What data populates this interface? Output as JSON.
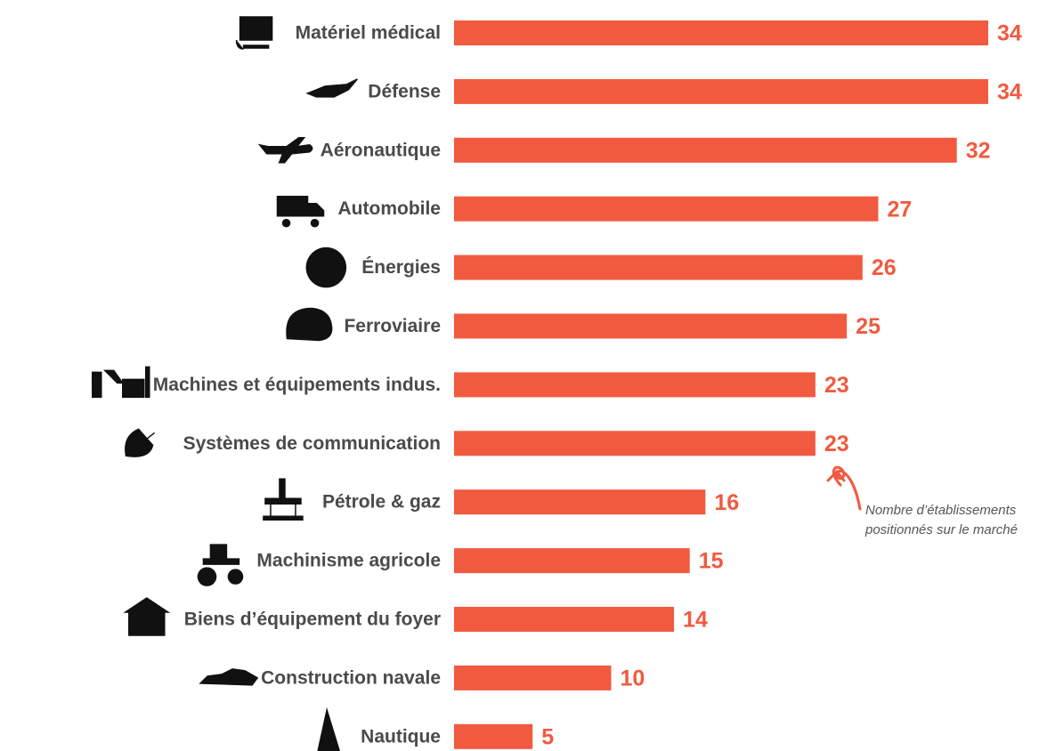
{
  "chart_data": {
    "type": "bar",
    "orientation": "horizontal",
    "categories": [
      "Matériel médical",
      "Défense",
      "Aéronautique",
      "Automobile",
      "Énergies",
      "Ferroviaire",
      "Machines et équipements indus.",
      "Systèmes de communication",
      "Pétrole & gaz",
      "Machinisme agricole",
      "Biens d’équipement du foyer",
      "Construction navale",
      "Nautique"
    ],
    "values": [
      34,
      34,
      32,
      27,
      26,
      25,
      23,
      23,
      16,
      15,
      14,
      10,
      5
    ],
    "color": "#f15a3f",
    "annotation": [
      "Nombre d’établissements",
      "positionnés sur le marché"
    ]
  }
}
